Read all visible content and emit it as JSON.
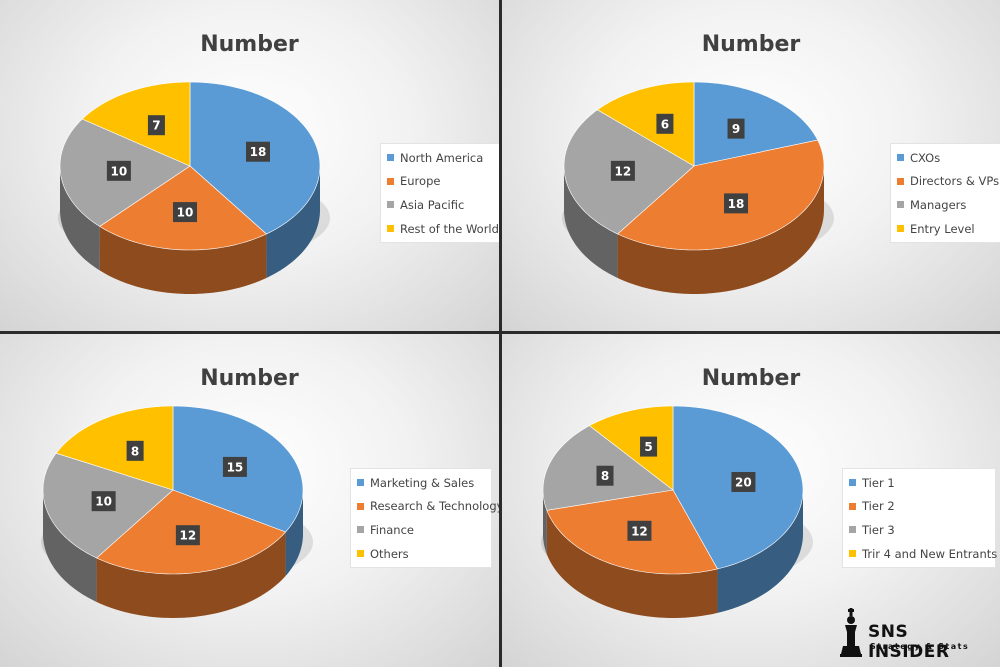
{
  "charts": [
    {
      "title": "Number",
      "chart_data": {
        "type": "pie",
        "title": "Number",
        "categories": [
          "North America",
          "Europe",
          "Asia Pacific",
          "Rest of the World"
        ],
        "values": [
          18,
          10,
          10,
          7
        ],
        "colors": [
          "#5b9bd5",
          "#ed7d31",
          "#a5a5a5",
          "#ffc000"
        ],
        "legend_position": "right"
      }
    },
    {
      "title": "Number",
      "chart_data": {
        "type": "pie",
        "title": "Number",
        "categories": [
          "CXOs",
          "Directors & VPs",
          "Managers",
          "Entry Level"
        ],
        "values": [
          9,
          18,
          12,
          6
        ],
        "colors": [
          "#5b9bd5",
          "#ed7d31",
          "#a5a5a5",
          "#ffc000"
        ],
        "legend_position": "right"
      }
    },
    {
      "title": "Number",
      "chart_data": {
        "type": "pie",
        "title": "Number",
        "categories": [
          "Marketing & Sales",
          "Research & Technology",
          "Finance",
          "Others"
        ],
        "values": [
          15,
          12,
          10,
          8
        ],
        "colors": [
          "#5b9bd5",
          "#ed7d31",
          "#a5a5a5",
          "#ffc000"
        ],
        "legend_position": "right"
      }
    },
    {
      "title": "Number",
      "chart_data": {
        "type": "pie",
        "title": "Number",
        "categories": [
          "Tier 1",
          "Tier 2",
          "Tier 3",
          "Trir 4 and New Entrants"
        ],
        "values": [
          20,
          12,
          8,
          5
        ],
        "colors": [
          "#5b9bd5",
          "#ed7d31",
          "#a5a5a5",
          "#ffc000"
        ],
        "legend_position": "right"
      }
    }
  ],
  "logo": {
    "name": "SNS INSIDER",
    "tagline": "Strategy & Stats"
  }
}
